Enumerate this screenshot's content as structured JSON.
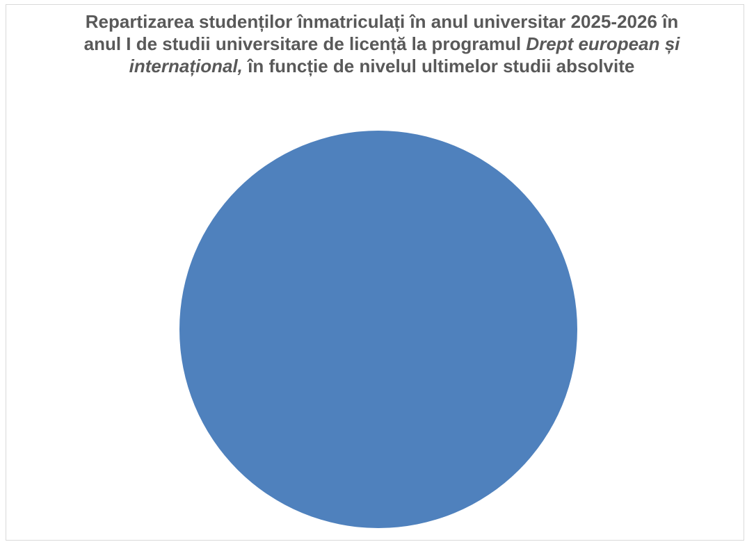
{
  "chart_data": {
    "type": "pie",
    "title_parts": [
      "Repartizarea studenților înmatriculați în anul universitar 2025-2026 în anul I de studii universitare de licență la programul ",
      "Drept european și internațional,",
      " în funcție de nivelul ultimelor studii absolvite"
    ],
    "slices": [
      {
        "label": "",
        "value": 100,
        "color": "#4f81bd"
      }
    ],
    "legend": "none"
  }
}
